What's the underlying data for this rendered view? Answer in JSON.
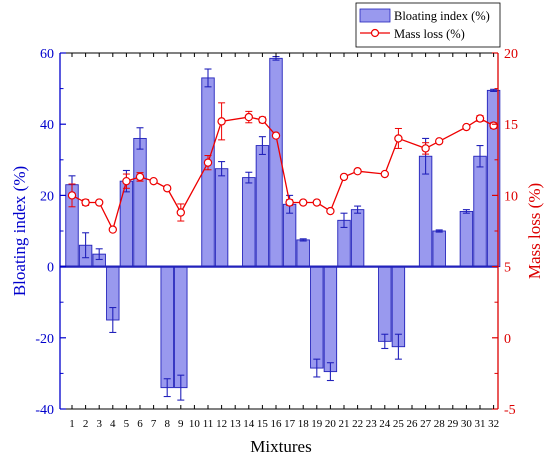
{
  "chart_data": {
    "type": "bar",
    "xlabel": "Mixtures",
    "ylabel_left": "Bloating index (%)",
    "ylabel_right": "Mass loss (%)",
    "ylim_left": [
      -40,
      60
    ],
    "ylim_right": [
      -5,
      20
    ],
    "yticks_left": [
      -40,
      -20,
      0,
      20,
      40,
      60
    ],
    "yticks_right": [
      -5,
      0,
      5,
      10,
      15,
      20
    ],
    "categories": [
      "1",
      "2",
      "3",
      "4",
      "5",
      "6",
      "7",
      "8",
      "9",
      "10",
      "11",
      "12",
      "13",
      "14",
      "15",
      "16",
      "17",
      "18",
      "19",
      "20",
      "21",
      "22",
      "23",
      "24",
      "25",
      "26",
      "27",
      "28",
      "29",
      "30",
      "31",
      "32"
    ],
    "legend_position": "top-right",
    "colors": {
      "left_axis": "#0000cc",
      "right_axis": "#dd0000",
      "bar_fill": "#9999ee",
      "bar_stroke": "#2222bb",
      "line": "#ee0000"
    },
    "series": [
      {
        "name": "Bloating index (%)",
        "type": "bar",
        "axis": "left",
        "values": [
          23,
          6,
          3.5,
          -15,
          24,
          36,
          null,
          -34,
          -34,
          null,
          53,
          27.5,
          null,
          25,
          34,
          58.5,
          17.5,
          7.5,
          -28.5,
          -29.5,
          13,
          16,
          null,
          -21,
          -22.5,
          null,
          31,
          10,
          null,
          15.5,
          31,
          49.5
        ],
        "errors": [
          2.5,
          3.5,
          1.5,
          3.5,
          3,
          3,
          null,
          2.5,
          3.5,
          null,
          2.5,
          2,
          null,
          1.5,
          2.5,
          0.5,
          2.5,
          0.3,
          2.5,
          2.5,
          2,
          1,
          null,
          2,
          3.5,
          null,
          5,
          0.3,
          null,
          0.5,
          3,
          0.3
        ]
      },
      {
        "name": "Mass loss (%)",
        "type": "line",
        "axis": "right",
        "values": [
          10,
          9.5,
          9.5,
          7.6,
          11,
          11.3,
          11,
          10.5,
          8.8,
          null,
          12.3,
          15.2,
          null,
          15.5,
          15.3,
          14.2,
          9.5,
          9.5,
          9.5,
          8.9,
          11.3,
          11.7,
          null,
          11.5,
          14,
          null,
          13.3,
          13.8,
          null,
          14.8,
          15.4,
          14.9
        ],
        "errors": [
          0.8,
          0.2,
          0.1,
          0.1,
          0.5,
          0.3,
          0,
          0,
          0.6,
          null,
          0.5,
          1.3,
          null,
          0.4,
          0.2,
          0.1,
          0.2,
          0.1,
          0.1,
          0.1,
          0.1,
          0.1,
          null,
          0.1,
          0.7,
          null,
          0.4,
          0.1,
          null,
          0.1,
          0.2,
          0.2
        ]
      }
    ]
  }
}
